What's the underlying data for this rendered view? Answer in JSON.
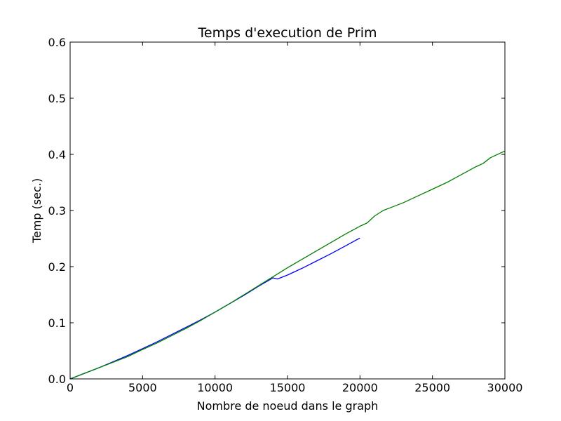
{
  "chart_data": {
    "type": "line",
    "title": "Temps d'execution de Prim",
    "xlabel": "Nombre de noeud dans le graph",
    "ylabel": "Temp (sec.)",
    "xlim": [
      0,
      30000
    ],
    "ylim": [
      0,
      0.6
    ],
    "x_ticks": [
      0,
      5000,
      10000,
      15000,
      20000,
      25000,
      30000
    ],
    "y_ticks": [
      0.0,
      0.1,
      0.2,
      0.3,
      0.4,
      0.5,
      0.6
    ],
    "x_tick_labels": [
      "0",
      "5000",
      "10000",
      "15000",
      "20000",
      "25000",
      "30000"
    ],
    "y_tick_labels": [
      "0.0",
      "0.1",
      "0.2",
      "0.3",
      "0.4",
      "0.5",
      "0.6"
    ],
    "grid": false,
    "series": [
      {
        "color": "#0000ff",
        "x": [
          0,
          1000,
          2000,
          3000,
          4000,
          5000,
          6000,
          7000,
          8000,
          9000,
          10000,
          11000,
          12000,
          13000,
          14000,
          14300,
          15000,
          16000,
          17000,
          18000,
          19000,
          20000
        ],
        "y": [
          0.0,
          0.01,
          0.02,
          0.031,
          0.042,
          0.054,
          0.066,
          0.079,
          0.092,
          0.105,
          0.119,
          0.134,
          0.149,
          0.165,
          0.18,
          0.178,
          0.185,
          0.197,
          0.21,
          0.223,
          0.237,
          0.251
        ]
      },
      {
        "color": "#008000",
        "x": [
          0,
          1000,
          2000,
          3000,
          4000,
          4800,
          6000,
          7000,
          8000,
          9000,
          10000,
          11000,
          12000,
          13000,
          14000,
          15000,
          16000,
          17000,
          18000,
          19000,
          20000,
          20500,
          21000,
          21600,
          22000,
          23000,
          24000,
          25000,
          26000,
          27000,
          28000,
          28500,
          29000,
          30000
        ],
        "y": [
          0.0,
          0.01,
          0.02,
          0.03,
          0.04,
          0.05,
          0.064,
          0.077,
          0.09,
          0.104,
          0.119,
          0.134,
          0.15,
          0.166,
          0.182,
          0.198,
          0.213,
          0.228,
          0.243,
          0.258,
          0.272,
          0.278,
          0.29,
          0.3,
          0.304,
          0.314,
          0.326,
          0.338,
          0.35,
          0.364,
          0.378,
          0.384,
          0.394,
          0.406
        ]
      }
    ]
  }
}
